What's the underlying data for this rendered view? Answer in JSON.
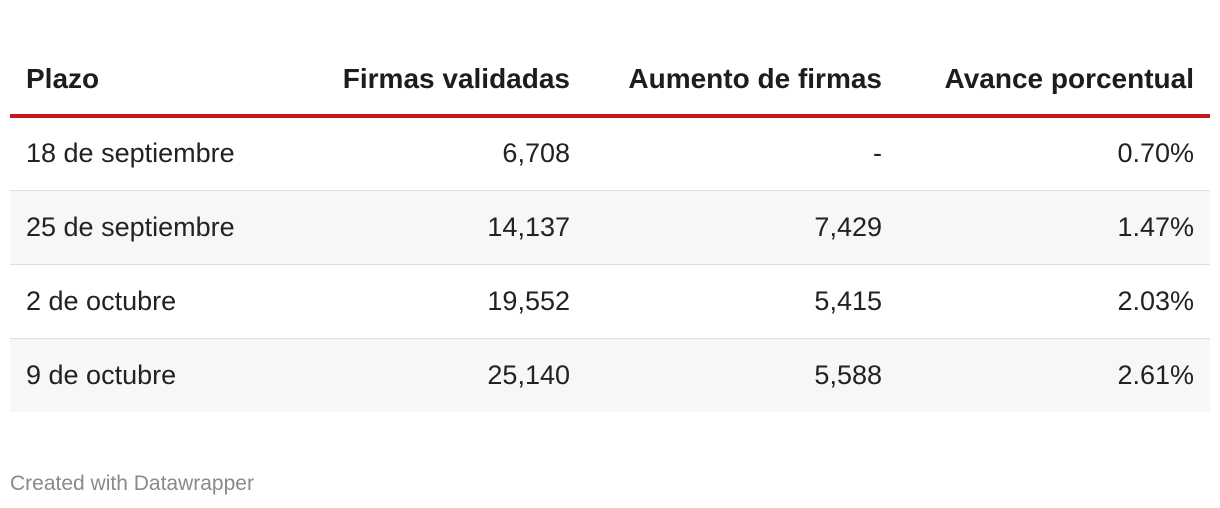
{
  "chart_data": {
    "type": "table",
    "columns": [
      "Plazo",
      "Firmas validadas",
      "Aumento de firmas",
      "Avance porcentual"
    ],
    "rows": [
      [
        "18 de septiembre",
        "6,708",
        "-",
        "0.70%"
      ],
      [
        "25 de septiembre",
        "14,137",
        "7,429",
        "1.47%"
      ],
      [
        "2 de octubre",
        "19,552",
        "5,415",
        "2.03%"
      ],
      [
        "9 de octubre",
        "25,140",
        "5,588",
        "2.61%"
      ]
    ]
  },
  "colors": {
    "header_rule": "#c8171f",
    "alt_row": "#f7f7f7",
    "footer_text": "#8a8a8a"
  },
  "footer": {
    "credit": "Created with Datawrapper"
  }
}
